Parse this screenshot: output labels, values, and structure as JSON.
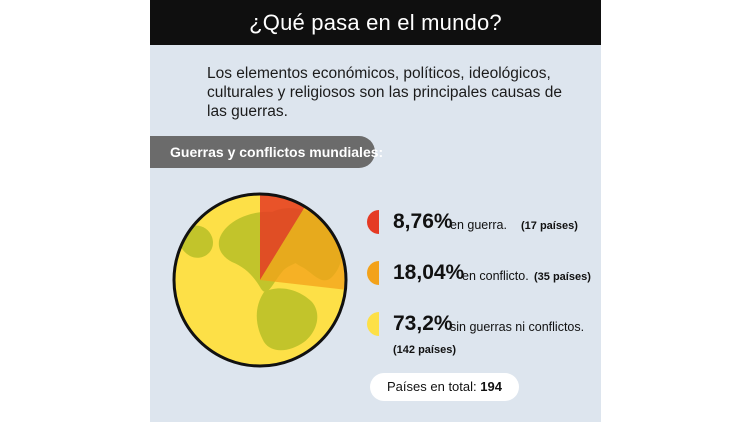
{
  "header": {
    "title": "¿Qué pasa en el mundo?"
  },
  "intro": "Los elementos económicos, políticos, ideológicos, culturales y religiosos son las principales causas de las guerras.",
  "section_label": "Guerras y conflictos mundiales:",
  "colors": {
    "war": "#e53a24",
    "conflict": "#f3a21a",
    "none": "#fde047",
    "land": "#c2c42b",
    "ocean": "#fde047",
    "background": "#dde5ee",
    "header": "#0f0f0f",
    "pill": "#6b6b6b"
  },
  "legend": [
    {
      "pct": "8,76%",
      "desc": "en guerra.",
      "count": "(17 países)",
      "icon": "red-half-circle-icon"
    },
    {
      "pct": "18,04%",
      "desc": "en conflicto.",
      "count": "(35 países)",
      "icon": "orange-half-circle-icon"
    },
    {
      "pct": "73,2%",
      "desc": "sin guerras ni conflictos.",
      "count": "(142 países)",
      "icon": "yellow-half-circle-icon"
    }
  ],
  "total": {
    "label": "Países en total:",
    "value": "194"
  },
  "chart_data": {
    "type": "pie",
    "title": "Guerras y conflictos mundiales:",
    "categories": [
      "en guerra",
      "en conflicto",
      "sin guerras ni conflictos"
    ],
    "values": [
      8.76,
      18.04,
      73.2
    ],
    "counts": [
      17,
      35,
      142
    ],
    "total": 194
  }
}
